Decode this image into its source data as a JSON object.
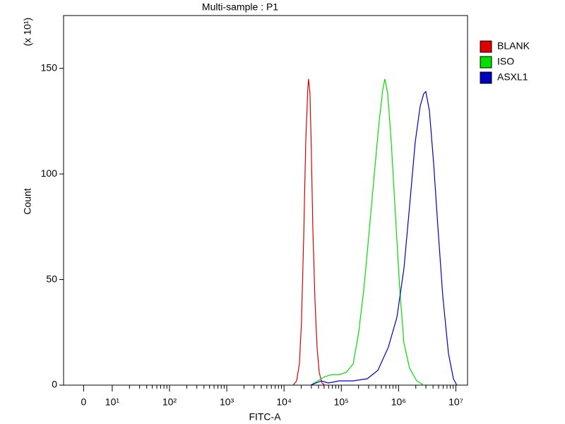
{
  "chart_data": {
    "type": "line",
    "title": "Multi-sample : P1",
    "xlabel": "FITC-A",
    "ylabel": "Count",
    "y_multiplier": "(x 10¹)",
    "xscale": "biexponential",
    "xlim": [
      -7,
      16000000
    ],
    "ylim": [
      0,
      175
    ],
    "yticks": [
      0,
      50,
      100,
      150
    ],
    "xticks": [
      0,
      {
        "value": 10,
        "label": "10¹"
      },
      {
        "value": 100,
        "label": "10²"
      },
      {
        "value": 1000,
        "label": "10³"
      },
      {
        "value": 10000,
        "label": "10⁴"
      },
      {
        "value": 100000,
        "label": "10⁵"
      },
      {
        "value": 1000000,
        "label": "10⁶"
      },
      {
        "value": 10000000,
        "label": "10⁷"
      }
    ],
    "xminorticks": [
      20,
      30,
      40,
      50,
      60,
      70,
      80,
      90,
      200,
      300,
      400,
      500,
      600,
      700,
      800,
      900,
      2000,
      3000,
      4000,
      5000,
      6000,
      7000,
      8000,
      9000,
      20000,
      30000,
      40000,
      50000,
      60000,
      70000,
      80000,
      90000,
      200000,
      300000,
      400000,
      500000,
      600000,
      700000,
      800000,
      900000,
      2000000,
      3000000,
      4000000,
      5000000,
      6000000,
      7000000,
      8000000,
      9000000
    ],
    "legend": "right",
    "series": [
      {
        "name": "BLANK",
        "color": "#e00000",
        "x": [
          14400,
          16600,
          18500,
          20200,
          22000,
          23900,
          26000,
          26800,
          28400,
          30000,
          31800,
          34700,
          37700,
          41100,
          46000,
          51500
        ],
        "values": [
          0,
          2,
          10,
          30,
          70,
          115,
          140,
          145,
          138,
          110,
          75,
          40,
          18,
          6,
          1,
          0
        ]
      },
      {
        "name": "ISO",
        "color": "#00e000",
        "x": [
          29200,
          38800,
          51500,
          68500,
          91000,
          121000,
          161000,
          201000,
          246000,
          300000,
          377000,
          459000,
          530000,
          577000,
          646000,
          745000,
          883000,
          1050000,
          1240000,
          1560000,
          2070000,
          2750000
        ],
        "values": [
          0,
          2,
          4,
          5,
          5,
          6,
          10,
          25,
          45,
          70,
          100,
          125,
          140,
          145,
          138,
          115,
          80,
          45,
          20,
          8,
          2,
          0
        ]
      },
      {
        "name": "ASXL1",
        "color": "#0000c0",
        "x": [
          29200,
          44800,
          59400,
          91000,
          161000,
          283000,
          434000,
          664000,
          933000,
          1240000,
          1560000,
          1950000,
          2380000,
          2750000,
          2990000,
          3450000,
          4090000,
          4850000,
          5920000,
          7430000,
          9060000,
          10400000
        ],
        "values": [
          0,
          2,
          1,
          2,
          2,
          3,
          7,
          18,
          32,
          55,
          85,
          115,
          132,
          138,
          139,
          130,
          105,
          75,
          42,
          15,
          3,
          0
        ]
      }
    ]
  }
}
